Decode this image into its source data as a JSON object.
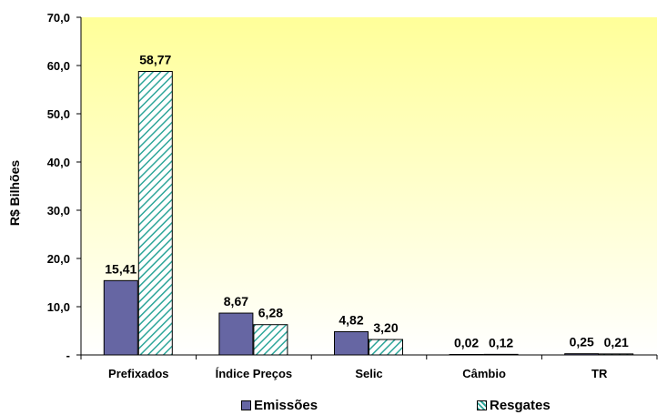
{
  "chart_data": {
    "type": "bar",
    "ylabel": "R$ Bilhões",
    "ylim": [
      0,
      70
    ],
    "yticks": [
      "-",
      "10,0",
      "20,0",
      "30,0",
      "40,0",
      "50,0",
      "60,0",
      "70,0"
    ],
    "categories": [
      "Prefixados",
      "Índice Preços",
      "Selic",
      "Câmbio",
      "TR"
    ],
    "series": [
      {
        "name": "Emissões",
        "values": [
          15.41,
          8.67,
          4.82,
          0.02,
          0.25
        ],
        "labels": [
          "15,41",
          "8,67",
          "4,82",
          "0,02",
          "0,25"
        ],
        "color": "#6666a3",
        "pattern": "solid"
      },
      {
        "name": "Resgates",
        "values": [
          58.77,
          6.28,
          3.2,
          0.12,
          0.21
        ],
        "labels": [
          "58,77",
          "6,28",
          "3,20",
          "0,12",
          "0,21"
        ],
        "color": "#2ea69a",
        "pattern": "hatch"
      }
    ],
    "background": "gradient-yellow",
    "legend_position": "bottom"
  }
}
